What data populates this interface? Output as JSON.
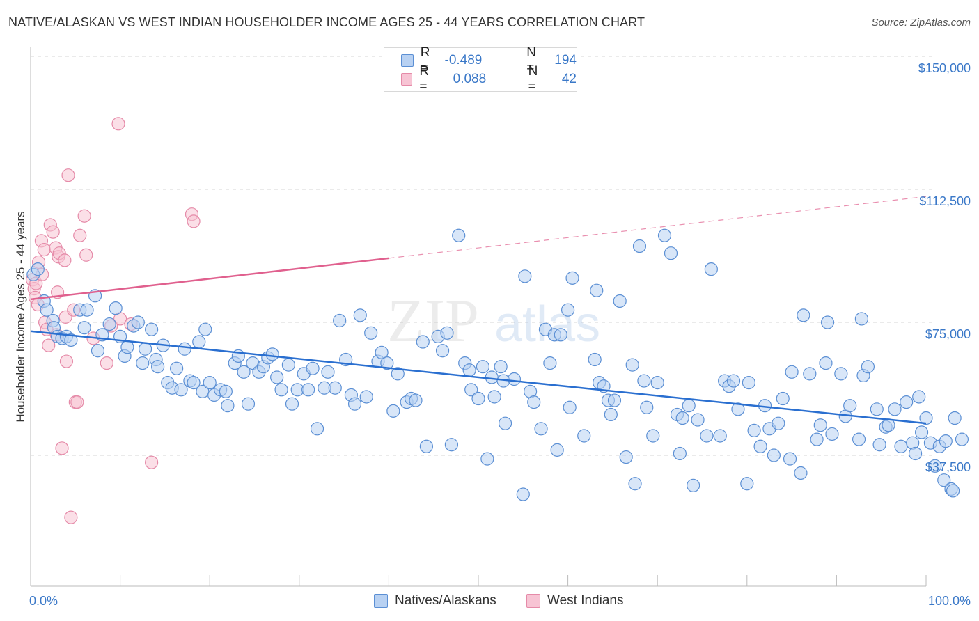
{
  "title": "NATIVE/ALASKAN VS WEST INDIAN HOUSEHOLDER INCOME AGES 25 - 44 YEARS CORRELATION CHART",
  "source": "Source: ZipAtlas.com",
  "watermark": {
    "zip": "ZIP",
    "atlas": "atlas"
  },
  "legend": {
    "rows": [
      {
        "r_label": "R =",
        "r_value": "-0.489",
        "n_label": "N =",
        "n_value": "194"
      },
      {
        "r_label": "R =",
        "r_value": "0.088",
        "n_label": "N =",
        "n_value": "42"
      }
    ]
  },
  "colors": {
    "blue_fill": "#b8d1f2",
    "blue_stroke": "#5b8fd4",
    "blue_line": "#2a6fd0",
    "pink_fill": "#f7c4d4",
    "pink_stroke": "#e58aa8",
    "pink_line": "#e0608e",
    "tick_text": "#3a78c8",
    "grid": "#d6d6d6"
  },
  "chart_data": {
    "type": "scatter",
    "title": "NATIVE/ALASKAN VS WEST INDIAN HOUSEHOLDER INCOME AGES 25 - 44 YEARS CORRELATION CHART",
    "xlabel": "",
    "ylabel": "Householder Income Ages 25 - 44 years",
    "xlim": [
      0,
      100
    ],
    "ylim": [
      0,
      158000
    ],
    "x_tick_labels": [
      {
        "value": 0,
        "label": "0.0%"
      },
      {
        "value": 100,
        "label": "100.0%"
      }
    ],
    "y_ticks": [
      {
        "value": 37500,
        "label": "$37,500"
      },
      {
        "value": 75000,
        "label": "$75,000"
      },
      {
        "value": 112500,
        "label": "$112,500"
      },
      {
        "value": 150000,
        "label": "$150,000"
      }
    ],
    "grid": true,
    "legend_position": "top-center",
    "series": [
      {
        "name": "Natives/Alaskans",
        "color": "#5b8fd4",
        "trend": {
          "x": [
            0,
            100
          ],
          "y": [
            72500,
            46500
          ],
          "solid_to": 100
        },
        "points": [
          [
            0.3,
            88500
          ],
          [
            0.8,
            90000
          ],
          [
            1.5,
            81000
          ],
          [
            1.8,
            78500
          ],
          [
            2.5,
            75500
          ],
          [
            2.6,
            73500
          ],
          [
            3.0,
            71000
          ],
          [
            3.5,
            70500
          ],
          [
            4.0,
            71000
          ],
          [
            4.5,
            70000
          ],
          [
            5.5,
            78500
          ],
          [
            6.0,
            73500
          ],
          [
            6.3,
            78500
          ],
          [
            7.2,
            82500
          ],
          [
            7.5,
            67000
          ],
          [
            8.0,
            71500
          ],
          [
            8.8,
            74500
          ],
          [
            9.5,
            79000
          ],
          [
            10.0,
            71000
          ],
          [
            10.5,
            65500
          ],
          [
            10.8,
            68000
          ],
          [
            11.5,
            74000
          ],
          [
            12.0,
            75000
          ],
          [
            12.5,
            63500
          ],
          [
            12.8,
            67500
          ],
          [
            13.5,
            73000
          ],
          [
            14.0,
            64500
          ],
          [
            14.2,
            62500
          ],
          [
            14.8,
            68500
          ],
          [
            15.3,
            58000
          ],
          [
            15.8,
            56500
          ],
          [
            16.3,
            62000
          ],
          [
            16.8,
            56000
          ],
          [
            17.2,
            67500
          ],
          [
            17.8,
            58500
          ],
          [
            18.2,
            58000
          ],
          [
            18.8,
            69500
          ],
          [
            19.2,
            55500
          ],
          [
            19.5,
            73000
          ],
          [
            20.0,
            58000
          ],
          [
            20.5,
            54500
          ],
          [
            21.2,
            56000
          ],
          [
            21.8,
            55500
          ],
          [
            22.0,
            51500
          ],
          [
            22.8,
            63500
          ],
          [
            23.2,
            65500
          ],
          [
            23.8,
            61000
          ],
          [
            24.3,
            52000
          ],
          [
            24.8,
            63500
          ],
          [
            25.5,
            61000
          ],
          [
            26.0,
            62500
          ],
          [
            26.5,
            65000
          ],
          [
            27.0,
            66000
          ],
          [
            27.5,
            59500
          ],
          [
            28.0,
            56000
          ],
          [
            28.8,
            63000
          ],
          [
            29.2,
            52000
          ],
          [
            29.8,
            56000
          ],
          [
            30.5,
            60500
          ],
          [
            31.0,
            56000
          ],
          [
            31.5,
            62000
          ],
          [
            32.0,
            45000
          ],
          [
            32.8,
            56500
          ],
          [
            33.2,
            61000
          ],
          [
            34.0,
            56500
          ],
          [
            34.5,
            75500
          ],
          [
            35.2,
            64500
          ],
          [
            35.8,
            54500
          ],
          [
            36.2,
            52000
          ],
          [
            36.8,
            77000
          ],
          [
            37.5,
            54000
          ],
          [
            38.0,
            72000
          ],
          [
            38.8,
            64000
          ],
          [
            39.2,
            66500
          ],
          [
            39.8,
            63500
          ],
          [
            40.5,
            50000
          ],
          [
            41.0,
            60500
          ],
          [
            42.0,
            52500
          ],
          [
            42.5,
            53500
          ],
          [
            43.0,
            53000
          ],
          [
            43.8,
            69500
          ],
          [
            44.2,
            40000
          ],
          [
            45.5,
            71000
          ],
          [
            46.0,
            67000
          ],
          [
            46.5,
            72000
          ],
          [
            47.0,
            40500
          ],
          [
            47.8,
            99500
          ],
          [
            48.5,
            63500
          ],
          [
            49.0,
            61500
          ],
          [
            49.2,
            56000
          ],
          [
            50.0,
            53500
          ],
          [
            50.5,
            62500
          ],
          [
            51.0,
            36500
          ],
          [
            51.5,
            59500
          ],
          [
            51.8,
            54000
          ],
          [
            52.5,
            62500
          ],
          [
            52.8,
            58500
          ],
          [
            53.0,
            46500
          ],
          [
            54.0,
            59000
          ],
          [
            55.0,
            26500
          ],
          [
            55.2,
            88000
          ],
          [
            55.8,
            55500
          ],
          [
            56.2,
            52500
          ],
          [
            57.0,
            45000
          ],
          [
            57.5,
            73000
          ],
          [
            58.0,
            63500
          ],
          [
            58.5,
            71500
          ],
          [
            58.8,
            39000
          ],
          [
            59.2,
            71500
          ],
          [
            60.0,
            78500
          ],
          [
            60.2,
            51000
          ],
          [
            60.5,
            87500
          ],
          [
            61.8,
            43000
          ],
          [
            63.0,
            64500
          ],
          [
            63.2,
            84000
          ],
          [
            63.5,
            58000
          ],
          [
            64.0,
            57000
          ],
          [
            64.5,
            53000
          ],
          [
            64.8,
            49000
          ],
          [
            65.2,
            53000
          ],
          [
            65.8,
            81000
          ],
          [
            66.5,
            37000
          ],
          [
            67.2,
            63000
          ],
          [
            67.5,
            29500
          ],
          [
            68.0,
            96500
          ],
          [
            68.5,
            58500
          ],
          [
            68.8,
            51000
          ],
          [
            69.5,
            43000
          ],
          [
            70.0,
            58000
          ],
          [
            70.8,
            99500
          ],
          [
            71.5,
            94500
          ],
          [
            72.2,
            49000
          ],
          [
            72.5,
            38000
          ],
          [
            72.8,
            48000
          ],
          [
            73.5,
            51500
          ],
          [
            74.0,
            29000
          ],
          [
            74.5,
            47500
          ],
          [
            75.5,
            43000
          ],
          [
            76.0,
            90000
          ],
          [
            77.0,
            43000
          ],
          [
            77.5,
            58500
          ],
          [
            78.0,
            57000
          ],
          [
            78.5,
            58500
          ],
          [
            79.0,
            50500
          ],
          [
            80.0,
            29500
          ],
          [
            80.2,
            58000
          ],
          [
            80.8,
            44500
          ],
          [
            81.5,
            40000
          ],
          [
            82.0,
            51500
          ],
          [
            82.5,
            45000
          ],
          [
            83.0,
            37500
          ],
          [
            83.5,
            46500
          ],
          [
            84.0,
            53500
          ],
          [
            84.8,
            36500
          ],
          [
            85.0,
            61000
          ],
          [
            86.0,
            32500
          ],
          [
            86.3,
            77000
          ],
          [
            87.0,
            60500
          ],
          [
            87.8,
            42000
          ],
          [
            88.2,
            46000
          ],
          [
            88.8,
            63500
          ],
          [
            89.0,
            75000
          ],
          [
            89.5,
            43500
          ],
          [
            90.5,
            60500
          ],
          [
            91.0,
            48500
          ],
          [
            91.5,
            51500
          ],
          [
            92.5,
            42000
          ],
          [
            92.8,
            76000
          ],
          [
            93.0,
            60000
          ],
          [
            93.5,
            62500
          ],
          [
            94.5,
            50500
          ],
          [
            94.8,
            40500
          ],
          [
            95.5,
            45500
          ],
          [
            95.8,
            46000
          ],
          [
            96.5,
            50500
          ],
          [
            97.2,
            40000
          ],
          [
            97.8,
            52500
          ],
          [
            98.5,
            41000
          ],
          [
            98.8,
            38000
          ],
          [
            99.2,
            54000
          ],
          [
            99.5,
            44000
          ],
          [
            100.0,
            48000
          ],
          [
            100.5,
            41000
          ],
          [
            101.0,
            34500
          ],
          [
            101.5,
            40000
          ],
          [
            102.0,
            30500
          ],
          [
            102.2,
            41500
          ],
          [
            102.8,
            28000
          ],
          [
            103.0,
            27500
          ],
          [
            103.2,
            48000
          ],
          [
            104.0,
            42000
          ]
        ]
      },
      {
        "name": "West Indians",
        "color": "#e58aa8",
        "trend": {
          "x": [
            0,
            100
          ],
          "y": [
            81500,
            110500
          ],
          "solid_to": 40
        },
        "points": [
          [
            0.2,
            87000
          ],
          [
            0.4,
            84500
          ],
          [
            0.5,
            82000
          ],
          [
            0.6,
            86000
          ],
          [
            0.8,
            80000
          ],
          [
            0.9,
            92000
          ],
          [
            1.2,
            98000
          ],
          [
            1.3,
            88500
          ],
          [
            1.5,
            95500
          ],
          [
            1.6,
            75000
          ],
          [
            1.8,
            73000
          ],
          [
            2.0,
            68500
          ],
          [
            2.2,
            102500
          ],
          [
            2.5,
            100500
          ],
          [
            2.8,
            96000
          ],
          [
            2.9,
            71500
          ],
          [
            3.0,
            83500
          ],
          [
            3.1,
            93500
          ],
          [
            3.2,
            94500
          ],
          [
            3.5,
            39500
          ],
          [
            3.8,
            92500
          ],
          [
            3.9,
            76500
          ],
          [
            4.0,
            64000
          ],
          [
            4.2,
            116500
          ],
          [
            4.5,
            20000
          ],
          [
            4.8,
            78500
          ],
          [
            5.0,
            52500
          ],
          [
            5.2,
            52500
          ],
          [
            5.5,
            99500
          ],
          [
            6.0,
            105000
          ],
          [
            6.2,
            94000
          ],
          [
            7.0,
            70500
          ],
          [
            8.5,
            63500
          ],
          [
            9.0,
            74000
          ],
          [
            9.8,
            131000
          ],
          [
            10.0,
            76000
          ],
          [
            11.2,
            74500
          ],
          [
            13.5,
            35500
          ],
          [
            18.0,
            105500
          ],
          [
            18.2,
            103500
          ]
        ]
      }
    ]
  }
}
